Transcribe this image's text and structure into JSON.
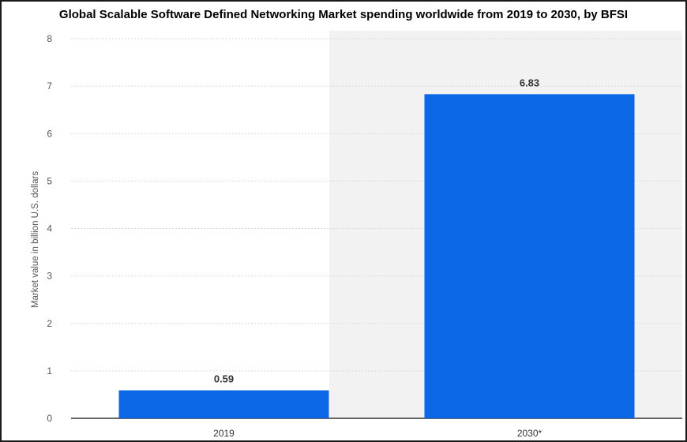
{
  "chart_data": {
    "type": "bar",
    "title": "Global Scalable Software Defined Networking Market spending worldwide from 2019 to 2030, by BFSI",
    "xlabel": "",
    "ylabel": "Market value in billion U.S. dollars",
    "categories": [
      "2019",
      "2030*"
    ],
    "values": [
      0.59,
      6.83
    ],
    "data_labels": [
      "0.59",
      "6.83"
    ],
    "ylim": [
      0,
      8
    ],
    "yticks": [
      "0",
      "1",
      "2",
      "3",
      "4",
      "5",
      "6",
      "7",
      "8"
    ],
    "grid": true,
    "forecast_shading": "2030*",
    "colors": {
      "bar": "#0b67e6",
      "grid": "#d9d9d9",
      "forecast_bg": "#f2f2f2",
      "axis": "#333333"
    }
  }
}
